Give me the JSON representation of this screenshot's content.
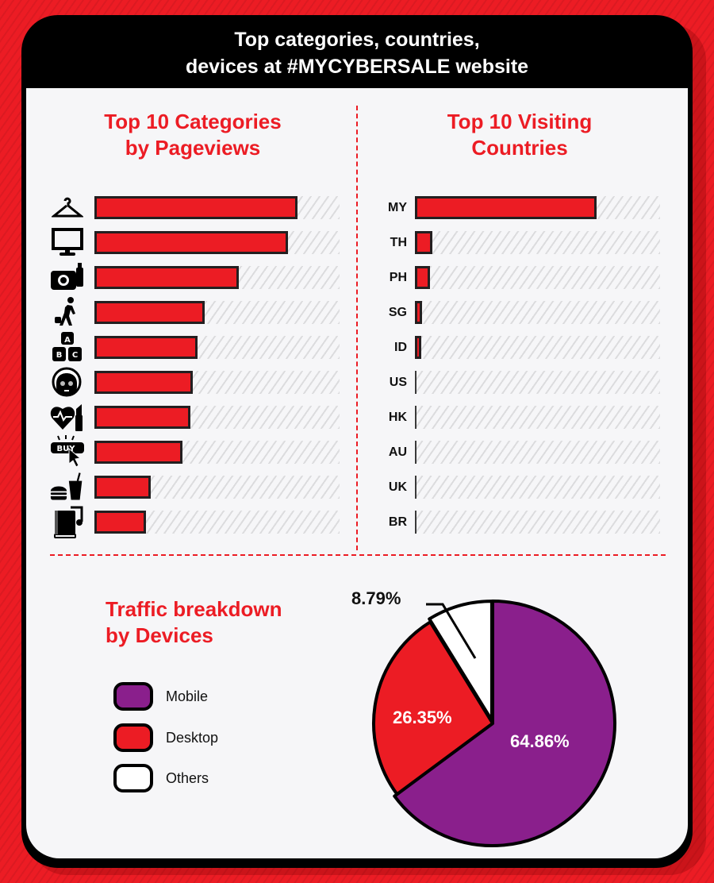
{
  "header": {
    "title_line1": "Top categories, countries,",
    "title_line2": "devices at #MYCYBERSALE website"
  },
  "colors": {
    "brand_red": "#ec1c24",
    "mobile_purple": "#8a1f8c",
    "desktop_red": "#ec1c24",
    "others_white": "#ffffff",
    "outline": "#231f20"
  },
  "categories_section": {
    "title_line1": "Top 10 Categories",
    "title_line2": "by Pageviews"
  },
  "countries_section": {
    "title_line1": "Top 10 Visiting",
    "title_line2": "Countries"
  },
  "devices_section": {
    "title_line1": "Traffic breakdown",
    "title_line2": "by Devices",
    "legend": [
      {
        "label": "Mobile",
        "color": "#8a1f8c"
      },
      {
        "label": "Desktop",
        "color": "#ec1c24"
      },
      {
        "label": "Others",
        "color": "#ffffff"
      }
    ]
  },
  "chart_data": [
    {
      "type": "bar",
      "orientation": "horizontal",
      "title": "Top 10 Categories by Pageviews",
      "categories": [
        "hanger-icon (Fashion)",
        "monitor-icon (Electronics)",
        "camera-icon (Cameras/Gadgets)",
        "traveler-icon (Travel)",
        "abc-blocks-icon (Toys/Kids)",
        "face-mask-icon (Beauty care)",
        "heart-lipstick-icon (Health & Beauty)",
        "buy-click-icon (Online shopping)",
        "burger-drink-icon (Food & Beverage)",
        "book-music-icon (Books & Music)"
      ],
      "values": [
        83,
        79,
        59,
        45,
        42,
        40,
        39,
        36,
        23,
        21
      ],
      "xlabel": "",
      "ylabel": "",
      "xlim": [
        0,
        100
      ],
      "note": "Relative bar lengths (% of track); no numeric labels shown"
    },
    {
      "type": "bar",
      "orientation": "horizontal",
      "title": "Top 10 Visiting Countries",
      "categories": [
        "MY",
        "TH",
        "PH",
        "SG",
        "ID",
        "US",
        "HK",
        "AU",
        "UK",
        "BR"
      ],
      "values": [
        74,
        7,
        6,
        3,
        2.5,
        0.6,
        0.3,
        0.3,
        0.3,
        0.3
      ],
      "xlabel": "",
      "ylabel": "",
      "xlim": [
        0,
        100
      ],
      "note": "Relative bar lengths (% of track); no numeric labels shown"
    },
    {
      "type": "pie",
      "title": "Traffic breakdown by Devices",
      "categories": [
        "Mobile",
        "Desktop",
        "Others"
      ],
      "values": [
        64.86,
        26.35,
        8.79
      ],
      "labels": [
        "64.86%",
        "26.35%",
        "8.79%"
      ],
      "colors": [
        "#8a1f8c",
        "#ec1c24",
        "#ffffff"
      ],
      "legend_position": "left"
    }
  ]
}
